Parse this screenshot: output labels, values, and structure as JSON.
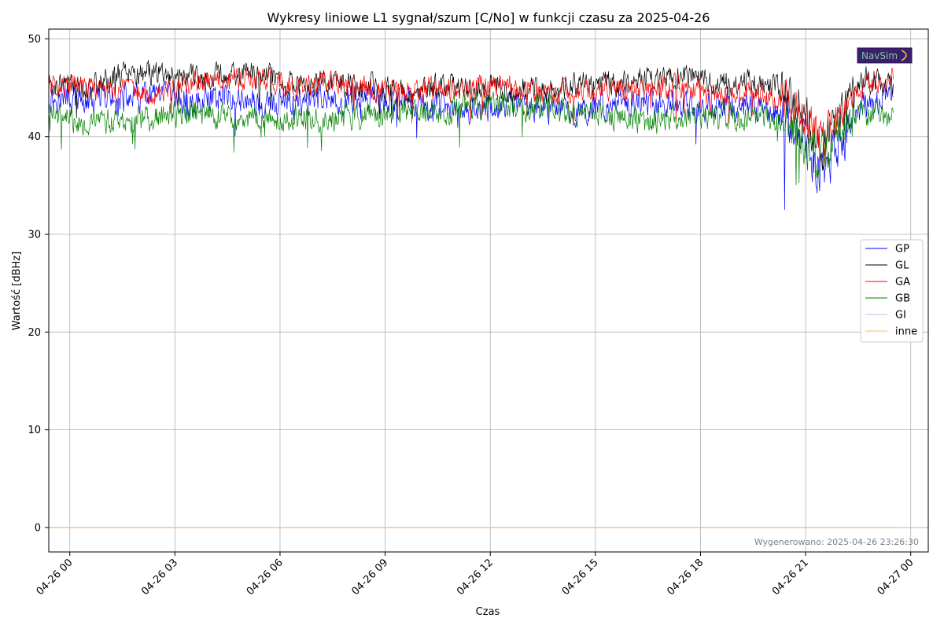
{
  "chart_data": {
    "type": "line",
    "title": "Wykresy liniowe L1 sygnał/szum [C/No] w funkcji czasu za 2025-04-26",
    "xlabel": "Czas",
    "ylabel": "Wartość [dBHz]",
    "x_unit": "hours since 2025-04-26 00:00",
    "x_range": [
      -0.6,
      24.5
    ],
    "x_ticks": [
      "04-26 00",
      "04-26 03",
      "04-26 06",
      "04-26 09",
      "04-26 12",
      "04-26 15",
      "04-26 18",
      "04-26 21",
      "04-27 00"
    ],
    "ylim": [
      -2.5,
      51
    ],
    "y_ticks": [
      0,
      10,
      20,
      30,
      40,
      50
    ],
    "grid": true,
    "legend_position": "right",
    "x_points": [
      -0.6,
      0.5,
      1.5,
      2.5,
      3.5,
      4.5,
      5.5,
      6.5,
      7.5,
      8.5,
      9.5,
      10.5,
      11.5,
      12.5,
      13.5,
      14.5,
      15.5,
      16.5,
      17.5,
      18.5,
      19.5,
      20.5,
      21.0,
      21.5,
      22.0,
      22.5,
      23.5
    ],
    "series": [
      {
        "name": "GP",
        "color": "#0000ff",
        "noise": 1.2,
        "values": [
          44.0,
          43.5,
          43.8,
          44.0,
          43.5,
          44.5,
          43.0,
          43.5,
          43.5,
          44.0,
          43.5,
          43.0,
          42.5,
          43.0,
          43.0,
          42.5,
          43.5,
          43.5,
          43.0,
          43.0,
          43.0,
          42.0,
          39.0,
          36.5,
          39.0,
          43.0,
          44.5
        ]
      },
      {
        "name": "GL",
        "color": "#000000",
        "noise": 1.1,
        "values": [
          45.5,
          45.0,
          46.5,
          46.5,
          46.0,
          46.5,
          46.5,
          45.5,
          45.5,
          45.0,
          44.5,
          45.0,
          45.0,
          45.0,
          44.5,
          45.5,
          45.5,
          46.0,
          46.0,
          45.5,
          45.5,
          45.0,
          42.0,
          39.0,
          42.5,
          46.0,
          45.0
        ]
      },
      {
        "name": "GA",
        "color": "#ff0000",
        "noise": 1.0,
        "values": [
          45.5,
          45.0,
          44.5,
          44.5,
          45.5,
          45.5,
          46.0,
          45.0,
          45.5,
          45.0,
          44.5,
          45.0,
          45.0,
          45.5,
          44.5,
          44.5,
          45.0,
          45.0,
          45.0,
          44.5,
          44.5,
          43.5,
          42.0,
          40.0,
          42.5,
          45.0,
          46.0
        ]
      },
      {
        "name": "GB",
        "color": "#008000",
        "noise": 1.1,
        "values": [
          42.5,
          41.5,
          41.5,
          42.0,
          42.5,
          42.0,
          42.0,
          42.0,
          42.0,
          42.0,
          42.5,
          42.5,
          43.0,
          43.0,
          43.0,
          42.5,
          42.0,
          41.5,
          42.0,
          42.0,
          42.0,
          41.5,
          39.5,
          37.5,
          40.5,
          42.5,
          42.5
        ]
      },
      {
        "name": "GI",
        "color": "#aec7e8",
        "noise": 0,
        "values": [
          0,
          0,
          0,
          0,
          0,
          0,
          0,
          0,
          0,
          0,
          0,
          0,
          0,
          0,
          0,
          0,
          0,
          0,
          0,
          0,
          0,
          0,
          0,
          0,
          0,
          0,
          0
        ]
      },
      {
        "name": "inne",
        "color": "#ffbb78",
        "noise": 0,
        "values": [
          0,
          0,
          0,
          0,
          0,
          0,
          0,
          0,
          0,
          0,
          0,
          0,
          0,
          0,
          0,
          0,
          0,
          0,
          0,
          0,
          0,
          0,
          0,
          0,
          0,
          0,
          0
        ]
      }
    ],
    "footer": "Wygenerowano: 2025-04-26 23:26:30",
    "logo_text": "NavSim"
  }
}
